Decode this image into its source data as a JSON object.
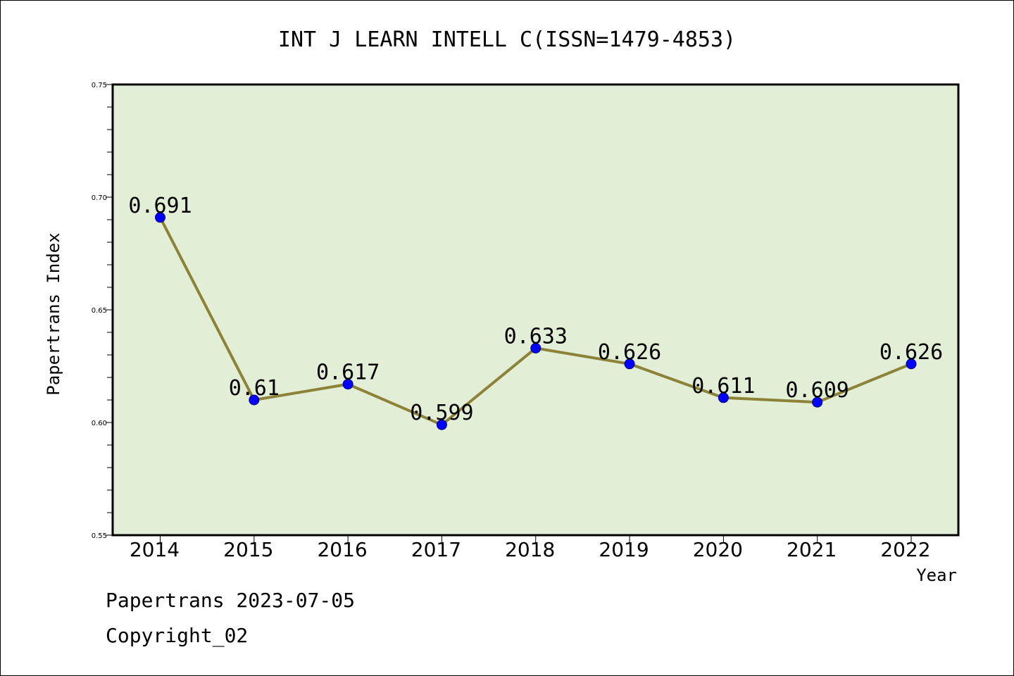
{
  "chart_data": {
    "type": "line",
    "title": "INT J LEARN INTELL C(ISSN=1479-4853)",
    "xlabel": "Year",
    "ylabel": "Papertrans Index",
    "categories": [
      "2014",
      "2015",
      "2016",
      "2017",
      "2018",
      "2019",
      "2020",
      "2021",
      "2022"
    ],
    "series": [
      {
        "values": [
          0.691,
          0.61,
          0.617,
          0.599,
          0.633,
          0.626,
          0.611,
          0.609,
          0.626
        ],
        "data_labels": [
          "0.691",
          "0.61",
          "0.617",
          "0.599",
          "0.633",
          "0.626",
          "0.611",
          "0.609",
          "0.626"
        ]
      }
    ],
    "ylim": [
      0.55,
      0.75
    ],
    "yticks": [
      "0.55",
      "0.60",
      "0.65",
      "0.70",
      "0.75"
    ],
    "grid": false,
    "colors": {
      "plot_background": "#e2efd6",
      "line": "#8c8339",
      "marker": "#0000ff",
      "marker_edge": "#00007a"
    }
  },
  "footer": {
    "line1": "Papertrans 2023-07-05",
    "line2": "Copyright_02"
  }
}
